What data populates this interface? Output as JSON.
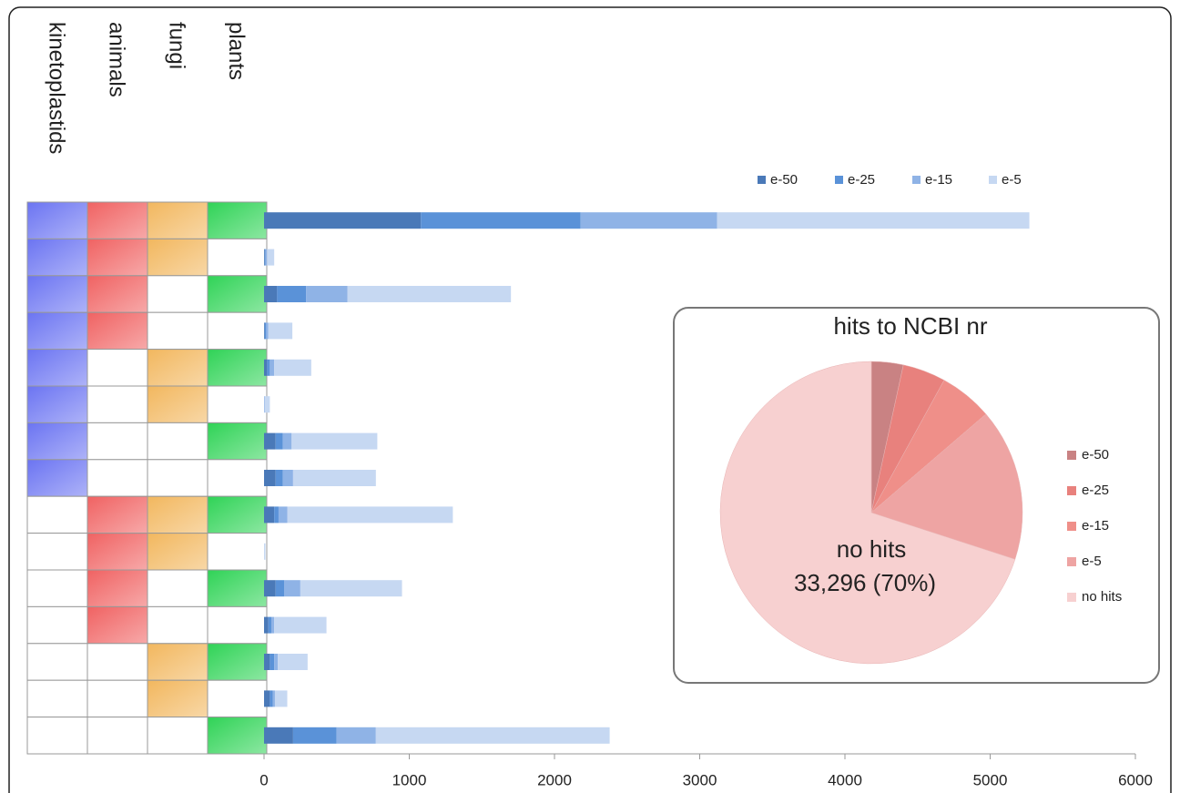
{
  "chart_data": [
    {
      "type": "bar",
      "orientation": "horizontal",
      "stacked": true,
      "columns": [
        "kinetoplastids",
        "animals",
        "fungi",
        "plants"
      ],
      "column_colors": [
        "#6b74f2",
        "#f06262",
        "#f2b75e",
        "#2fd356"
      ],
      "presence": [
        [
          1,
          1,
          1,
          1
        ],
        [
          1,
          1,
          1,
          0
        ],
        [
          1,
          1,
          0,
          1
        ],
        [
          1,
          1,
          0,
          0
        ],
        [
          1,
          0,
          1,
          1
        ],
        [
          1,
          0,
          1,
          0
        ],
        [
          1,
          0,
          0,
          1
        ],
        [
          1,
          0,
          0,
          0
        ],
        [
          0,
          1,
          1,
          1
        ],
        [
          0,
          1,
          1,
          0
        ],
        [
          0,
          1,
          0,
          1
        ],
        [
          0,
          1,
          0,
          0
        ],
        [
          0,
          0,
          1,
          1
        ],
        [
          0,
          0,
          1,
          0
        ],
        [
          0,
          0,
          0,
          1
        ]
      ],
      "series": [
        {
          "name": "e-50",
          "color": "#4a79b8",
          "values": [
            1080,
            5,
            90,
            5,
            20,
            0,
            80,
            80,
            70,
            0,
            80,
            30,
            40,
            40,
            200
          ]
        },
        {
          "name": "e-25",
          "color": "#5a92d8",
          "values": [
            1100,
            5,
            200,
            10,
            20,
            0,
            50,
            50,
            30,
            0,
            60,
            20,
            30,
            20,
            300
          ]
        },
        {
          "name": "e-15",
          "color": "#8fb3e6",
          "values": [
            940,
            10,
            285,
            15,
            30,
            5,
            60,
            70,
            60,
            0,
            110,
            20,
            25,
            15,
            270
          ]
        },
        {
          "name": "e-5",
          "color": "#c6d8f2",
          "values": [
            2150,
            50,
            1125,
            165,
            255,
            35,
            590,
            570,
            1140,
            10,
            700,
            360,
            205,
            85,
            1610
          ]
        }
      ],
      "xlim": [
        0,
        6000
      ],
      "xticks": [
        0,
        1000,
        2000,
        3000,
        4000,
        5000,
        6000
      ],
      "legend": "top-right"
    },
    {
      "type": "pie",
      "title": "hits to NCBI nr",
      "categories": [
        "e-50",
        "e-25",
        "e-15",
        "e-5",
        "no hits"
      ],
      "values": [
        3.4,
        4.6,
        5.7,
        16.3,
        70
      ],
      "value_labels": [
        null,
        null,
        null,
        null,
        "33,296 (70%)"
      ],
      "colors": [
        "#c98283",
        "#e8817d",
        "#ef8f89",
        "#eea4a3",
        "#f7d0d0"
      ],
      "legend": "right"
    }
  ]
}
